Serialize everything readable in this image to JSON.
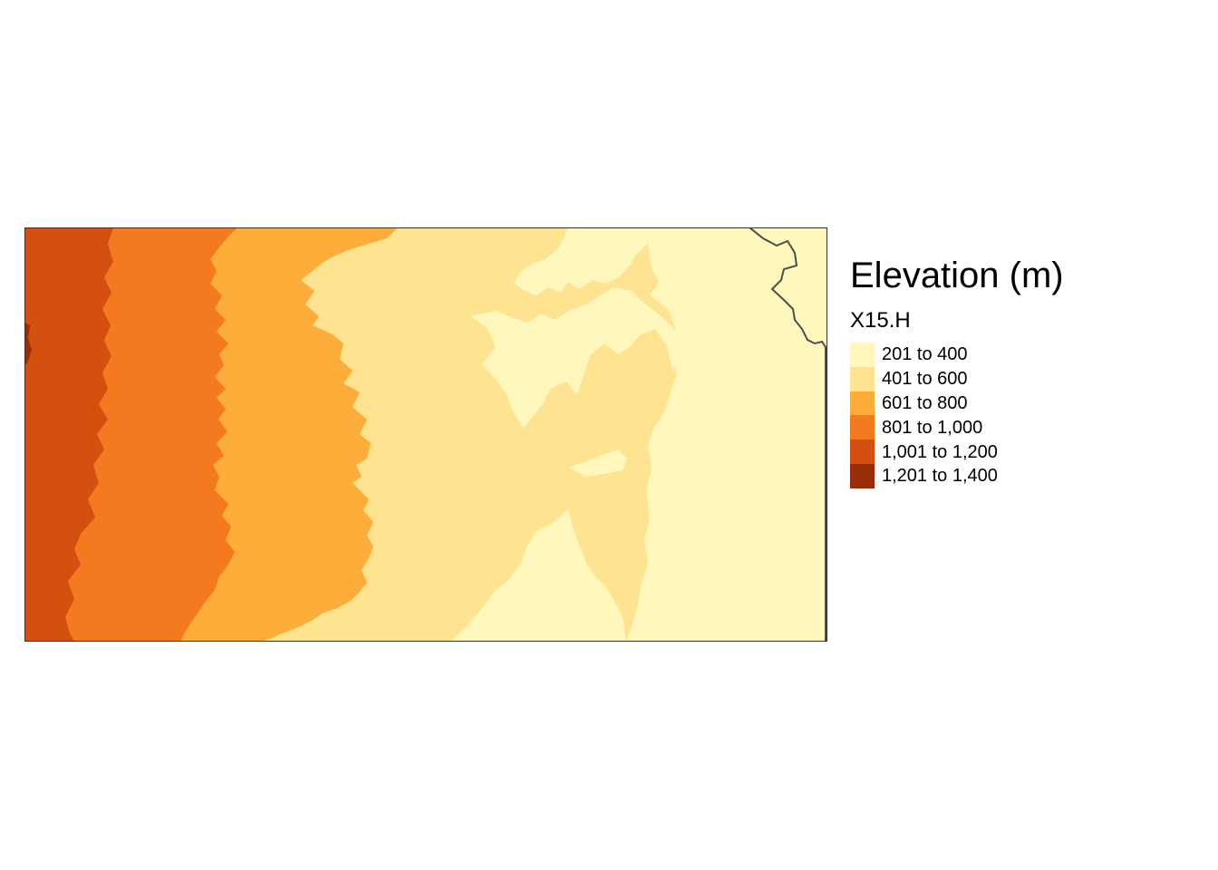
{
  "legend": {
    "title": "Elevation (m)",
    "subtitle": "X15.H",
    "classes": [
      {
        "label": "201 to 400",
        "color": "#fff7bc"
      },
      {
        "label": "401 to 600",
        "color": "#fee391"
      },
      {
        "label": "601 to 800",
        "color": "#fdae3a"
      },
      {
        "label": "801 to 1,000",
        "color": "#f47a1f"
      },
      {
        "label": "1,001 to 1,200",
        "color": "#d4500e"
      },
      {
        "label": "1,201 to 1,400",
        "color": "#992c0a"
      }
    ]
  },
  "map": {
    "frame_color": "#333333",
    "border_color": "#4d4d4d"
  }
}
